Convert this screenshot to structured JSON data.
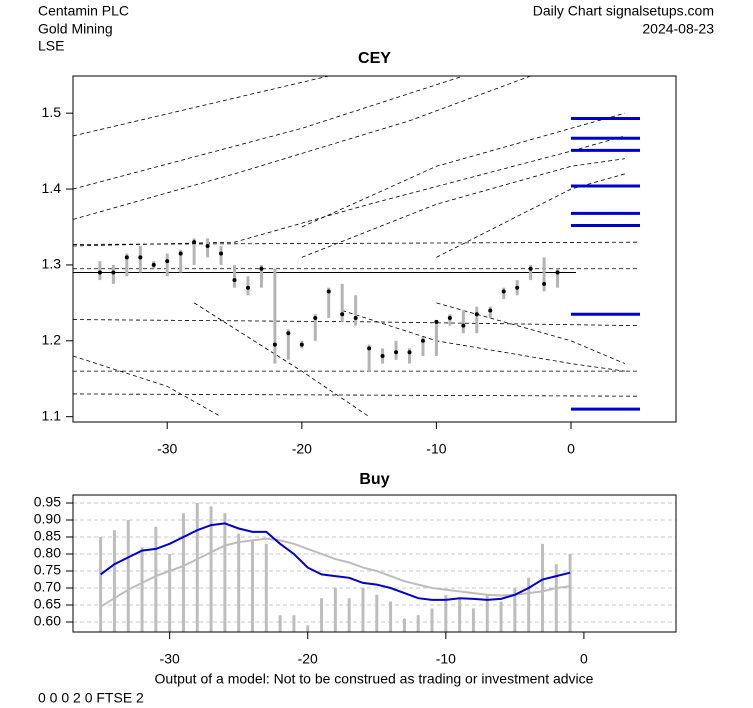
{
  "header": {
    "left": [
      "Centamin PLC",
      "Gold Mining",
      "LSE"
    ],
    "right": [
      "Daily Chart signalsetups.com",
      "2024-08-23"
    ]
  },
  "footer": {
    "disclaimer": "Output of a model: Not to be construed as trading or investment advice",
    "code": "0 0 0 2 0 FTSE 2"
  },
  "chart_data": [
    {
      "type": "candlestick",
      "title": "CEY",
      "x": [
        -35,
        -34,
        -33,
        -32,
        -31,
        -30,
        -29,
        -28,
        -27,
        -26,
        -25,
        -24,
        -23,
        -22,
        -21,
        -20,
        -19,
        -18,
        -17,
        -16,
        -15,
        -14,
        -13,
        -12,
        -11,
        -10,
        -9,
        -8,
        -7,
        -6,
        -5,
        -4,
        -3,
        -2,
        -1
      ],
      "high": [
        1.305,
        1.3,
        1.315,
        1.325,
        1.305,
        1.315,
        1.32,
        1.335,
        1.335,
        1.325,
        1.3,
        1.285,
        1.3,
        1.295,
        1.215,
        1.2,
        1.235,
        1.27,
        1.275,
        1.26,
        1.195,
        1.19,
        1.2,
        1.19,
        1.205,
        1.225,
        1.235,
        1.24,
        1.245,
        1.245,
        1.27,
        1.28,
        1.3,
        1.31,
        1.295
      ],
      "low": [
        1.28,
        1.275,
        1.285,
        1.29,
        1.295,
        1.285,
        1.29,
        1.3,
        1.31,
        1.3,
        1.27,
        1.26,
        1.27,
        1.17,
        1.175,
        1.19,
        1.2,
        1.23,
        1.225,
        1.22,
        1.16,
        1.17,
        1.175,
        1.17,
        1.18,
        1.18,
        1.22,
        1.21,
        1.21,
        1.23,
        1.255,
        1.26,
        1.28,
        1.265,
        1.27
      ],
      "close": [
        1.29,
        1.29,
        1.31,
        1.31,
        1.3,
        1.305,
        1.315,
        1.33,
        1.325,
        1.315,
        1.28,
        1.27,
        1.295,
        1.195,
        1.21,
        1.195,
        1.23,
        1.265,
        1.235,
        1.23,
        1.19,
        1.18,
        1.185,
        1.185,
        1.2,
        1.225,
        1.23,
        1.22,
        1.235,
        1.24,
        1.265,
        1.27,
        1.295,
        1.275,
        1.29
      ],
      "range_color": "#b4b4b4",
      "close_color": "#000000",
      "hline": 1.29,
      "levels": [
        1.493,
        1.467,
        1.451,
        1.404,
        1.368,
        1.352,
        1.235,
        1.11
      ],
      "level_color": "#0000cd",
      "dashed_lines": [
        {
          "x": [
            -37,
            -18
          ],
          "y": [
            1.47,
            1.549
          ]
        },
        {
          "x": [
            -37,
            -20,
            -8
          ],
          "y": [
            1.4,
            1.48,
            1.549
          ]
        },
        {
          "x": [
            -37,
            -25,
            -12,
            -3
          ],
          "y": [
            1.36,
            1.42,
            1.49,
            1.549
          ]
        },
        {
          "x": [
            -37,
            -25,
            -15,
            0,
            4
          ],
          "y": [
            1.325,
            1.33,
            1.38,
            1.45,
            1.47
          ]
        },
        {
          "x": [
            -37,
            5
          ],
          "y": [
            1.327,
            1.33
          ]
        },
        {
          "x": [
            -37,
            5
          ],
          "y": [
            1.295,
            1.295
          ]
        },
        {
          "x": [
            -37,
            -15,
            5
          ],
          "y": [
            1.228,
            1.225,
            1.22
          ]
        },
        {
          "x": [
            -37,
            5
          ],
          "y": [
            1.16,
            1.16
          ]
        },
        {
          "x": [
            -37,
            5
          ],
          "y": [
            1.13,
            1.127
          ]
        },
        {
          "x": [
            -37,
            -30,
            -26
          ],
          "y": [
            1.18,
            1.14,
            1.1
          ]
        },
        {
          "x": [
            -28,
            -20,
            -15
          ],
          "y": [
            1.25,
            1.16,
            1.1
          ]
        },
        {
          "x": [
            -20,
            -10,
            0,
            4
          ],
          "y": [
            1.35,
            1.43,
            1.48,
            1.5
          ]
        },
        {
          "x": [
            -20,
            -10,
            0,
            4
          ],
          "y": [
            1.31,
            1.38,
            1.43,
            1.44
          ]
        },
        {
          "x": [
            -10,
            0,
            4
          ],
          "y": [
            1.31,
            1.4,
            1.42
          ]
        },
        {
          "x": [
            -10,
            0,
            4
          ],
          "y": [
            1.25,
            1.2,
            1.17
          ]
        },
        {
          "x": [
            -17,
            -10,
            0,
            4
          ],
          "y": [
            1.24,
            1.2,
            1.17,
            1.16
          ]
        }
      ],
      "dashed_color": "#000000",
      "xlim": [
        -37,
        7.8
      ],
      "ylim": [
        1.093,
        1.549
      ],
      "xticks": [
        -30,
        -20,
        -10,
        0
      ],
      "yticks": [
        1.1,
        1.2,
        1.3,
        1.4,
        1.5
      ],
      "grid": false
    },
    {
      "type": "bar_line",
      "title": "Buy",
      "x": [
        -35,
        -34,
        -33,
        -32,
        -31,
        -30,
        -29,
        -28,
        -27,
        -26,
        -25,
        -24,
        -23,
        -22,
        -21,
        -20,
        -19,
        -18,
        -17,
        -16,
        -15,
        -14,
        -13,
        -12,
        -11,
        -10,
        -9,
        -8,
        -7,
        -6,
        -5,
        -4,
        -3,
        -2,
        -1
      ],
      "bars": [
        0.85,
        0.87,
        0.9,
        0.82,
        0.88,
        0.8,
        0.92,
        0.95,
        0.94,
        0.92,
        0.86,
        0.84,
        0.83,
        0.62,
        0.62,
        0.59,
        0.67,
        0.7,
        0.67,
        0.7,
        0.68,
        0.66,
        0.61,
        0.62,
        0.64,
        0.68,
        0.67,
        0.64,
        0.68,
        0.66,
        0.7,
        0.73,
        0.83,
        0.77,
        0.8
      ],
      "bar_color": "#bdbdbd",
      "series": [
        {
          "color": "#bdbdbd",
          "values": [
            0.645,
            0.67,
            0.695,
            0.715,
            0.735,
            0.75,
            0.765,
            0.785,
            0.805,
            0.825,
            0.835,
            0.84,
            0.845,
            0.84,
            0.83,
            0.815,
            0.8,
            0.785,
            0.775,
            0.76,
            0.75,
            0.735,
            0.72,
            0.71,
            0.7,
            0.695,
            0.69,
            0.685,
            0.68,
            0.678,
            0.68,
            0.685,
            0.69,
            0.7,
            0.705
          ]
        },
        {
          "color": "#0000cd",
          "values": [
            0.74,
            0.77,
            0.79,
            0.81,
            0.815,
            0.83,
            0.85,
            0.87,
            0.885,
            0.89,
            0.875,
            0.865,
            0.865,
            0.83,
            0.8,
            0.76,
            0.74,
            0.735,
            0.73,
            0.715,
            0.71,
            0.7,
            0.685,
            0.67,
            0.665,
            0.665,
            0.67,
            0.668,
            0.665,
            0.668,
            0.68,
            0.7,
            0.725,
            0.735,
            0.745
          ]
        }
      ],
      "xlim": [
        -37,
        6.67
      ],
      "ylim": [
        0.5706,
        0.9735
      ],
      "xticks": [
        -30,
        -20,
        -10,
        0
      ],
      "yticks": [
        {
          "value": 0.6,
          "label": "0.60"
        },
        {
          "value": 0.65,
          "label": "0.65"
        },
        {
          "value": 0.7,
          "label": "0.70"
        },
        {
          "value": 0.75,
          "label": "0.75"
        },
        {
          "value": 0.8,
          "label": "0.80"
        },
        {
          "value": 0.85,
          "label": "0.85"
        },
        {
          "value": 0.9,
          "label": "0.90"
        },
        {
          "value": 0.95,
          "label": "0.95"
        }
      ],
      "grid": true
    }
  ]
}
